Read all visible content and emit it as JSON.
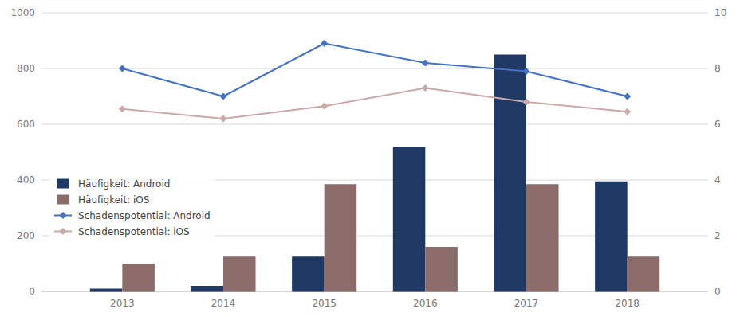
{
  "chart_data": {
    "type": "bar",
    "x": [
      2013,
      2014,
      2015,
      2016,
      2017,
      2018
    ],
    "xlim": [
      2012.2,
      2018.8
    ],
    "xticks": [
      2013,
      2014,
      2015,
      2016,
      2017,
      2018
    ],
    "ylim": [
      0,
      1000
    ],
    "yticks": [
      0,
      200,
      400,
      600,
      800,
      1000
    ],
    "y2lim": [
      0,
      10
    ],
    "y2ticks": [
      0,
      2,
      4,
      6,
      8,
      10
    ],
    "grid": true,
    "legend": "lower left",
    "series": [
      {
        "name": "Häufigkeit: Android",
        "type": "bar",
        "color": "#1f3864",
        "values": [
          10,
          20,
          125,
          520,
          850,
          395
        ]
      },
      {
        "name": "Häufigkeit: iOS",
        "type": "bar",
        "color": "#8c6b6b",
        "values": [
          100,
          125,
          385,
          160,
          385,
          125
        ]
      },
      {
        "name": "Schadenspotential: Android",
        "type": "line",
        "axis": "y2",
        "color": "#4472c4",
        "marker": "diamond",
        "values": [
          8.0,
          7.0,
          8.9,
          8.2,
          7.9,
          7.0
        ]
      },
      {
        "name": "Schadenspotential: iOS",
        "type": "line",
        "axis": "y2",
        "color": "#c9a9a9",
        "marker": "diamond",
        "values": [
          6.55,
          6.2,
          6.65,
          7.3,
          6.8,
          6.45
        ]
      }
    ]
  }
}
